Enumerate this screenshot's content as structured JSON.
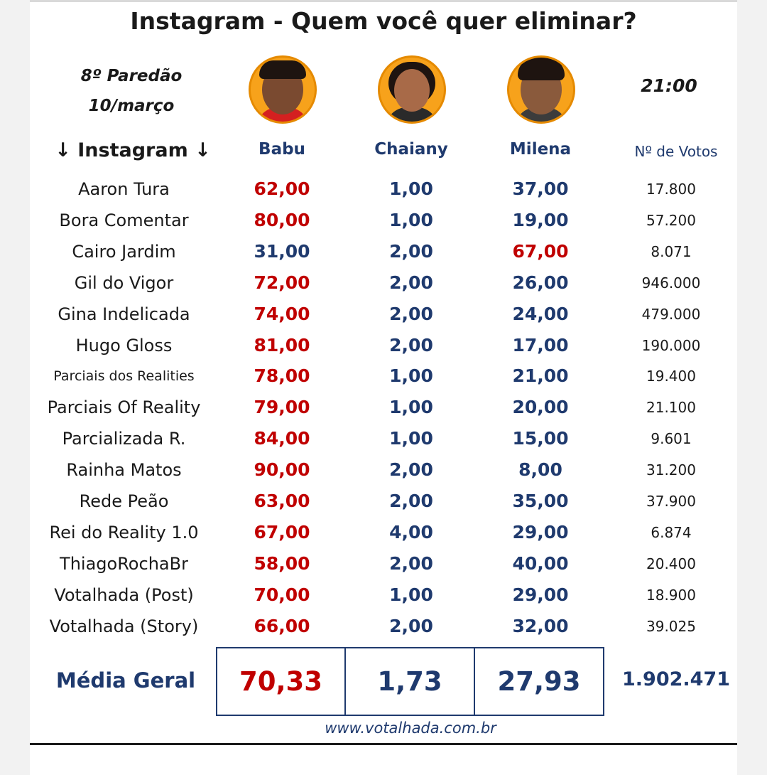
{
  "title": "Instagram - Quem você quer eliminar?",
  "paredao": "8º Paredão",
  "date": "10/março",
  "time": "21:00",
  "headers": {
    "instagram": "↓ Instagram ↓",
    "babu": "Babu",
    "chaiany": "Chaiany",
    "milena": "Milena",
    "votes": "Nº de Votos"
  },
  "rows": [
    {
      "name": "Aaron Tura",
      "babu": "62,00",
      "chaiany": "1,00",
      "milena": "37,00",
      "votes": "17.800"
    },
    {
      "name": "Bora Comentar",
      "babu": "80,00",
      "chaiany": "1,00",
      "milena": "19,00",
      "votes": "57.200"
    },
    {
      "name": "Cairo Jardim",
      "babu": "31,00",
      "chaiany": "2,00",
      "milena": "67,00",
      "votes": "8.071"
    },
    {
      "name": "Gil do Vigor",
      "babu": "72,00",
      "chaiany": "2,00",
      "milena": "26,00",
      "votes": "946.000"
    },
    {
      "name": "Gina Indelicada",
      "babu": "74,00",
      "chaiany": "2,00",
      "milena": "24,00",
      "votes": "479.000"
    },
    {
      "name": "Hugo Gloss",
      "babu": "81,00",
      "chaiany": "2,00",
      "milena": "17,00",
      "votes": "190.000"
    },
    {
      "name": "Parciais dos Realities",
      "babu": "78,00",
      "chaiany": "1,00",
      "milena": "21,00",
      "votes": "19.400"
    },
    {
      "name": "Parciais Of Reality",
      "babu": "79,00",
      "chaiany": "1,00",
      "milena": "20,00",
      "votes": "21.100"
    },
    {
      "name": "Parcializada R.",
      "babu": "84,00",
      "chaiany": "1,00",
      "milena": "15,00",
      "votes": "9.601"
    },
    {
      "name": "Rainha Matos",
      "babu": "90,00",
      "chaiany": "2,00",
      "milena": "8,00",
      "votes": "31.200"
    },
    {
      "name": "Rede Peão",
      "babu": "63,00",
      "chaiany": "2,00",
      "milena": "35,00",
      "votes": "37.900"
    },
    {
      "name": "Rei do Reality 1.0",
      "babu": "67,00",
      "chaiany": "4,00",
      "milena": "29,00",
      "votes": "6.874"
    },
    {
      "name": "ThiagoRochaBr",
      "babu": "58,00",
      "chaiany": "2,00",
      "milena": "40,00",
      "votes": "20.400"
    },
    {
      "name": "Votalhada (Post)",
      "babu": "70,00",
      "chaiany": "1,00",
      "milena": "29,00",
      "votes": "18.900"
    },
    {
      "name": "Votalhada (Story)",
      "babu": "66,00",
      "chaiany": "2,00",
      "milena": "32,00",
      "votes": "39.025"
    }
  ],
  "media_geral": {
    "label": "Média Geral",
    "babu": "70,33",
    "chaiany": "1,73",
    "milena": "27,93",
    "total_votes": "1.902.471"
  },
  "website": "www.votalhada.com.br",
  "colors": {
    "leader": "#c00000",
    "normal": "#1f3a6e",
    "avatar_bg": "#f7a21b"
  }
}
